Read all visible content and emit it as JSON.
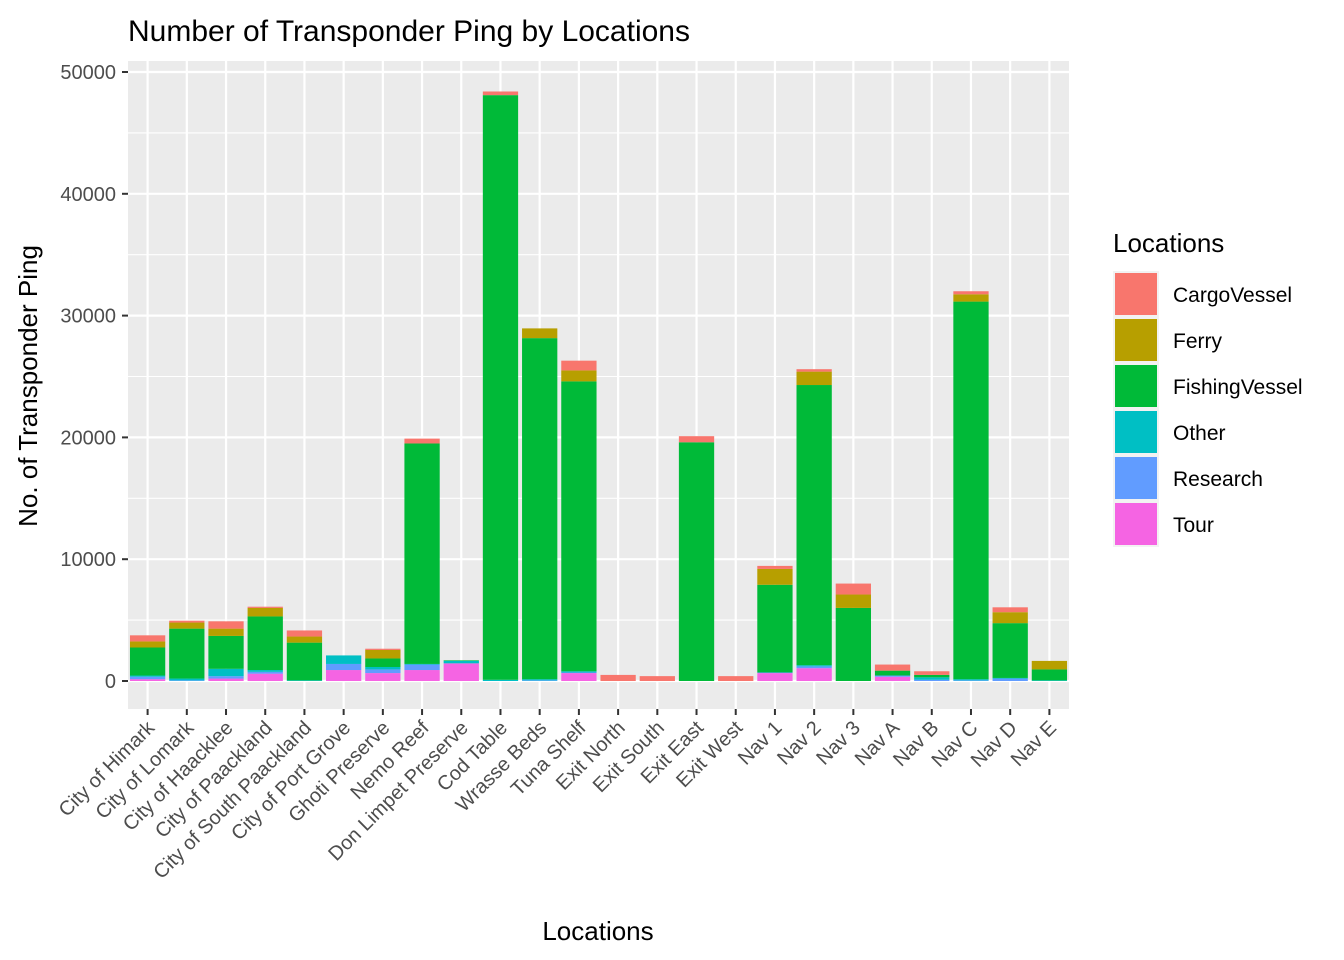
{
  "chart_data": {
    "type": "bar",
    "stacked": true,
    "title": "Number of Transponder Ping by Locations",
    "xlabel": "Locations",
    "ylabel": "No. of Transponder Ping",
    "ylim": [
      -2300,
      52000
    ],
    "yticks": [
      0,
      10000,
      20000,
      30000,
      40000,
      50000
    ],
    "grid": true,
    "legend": {
      "title": "Locations",
      "position": "right"
    },
    "categories": [
      "City of Himark",
      "City of Lomark",
      "City of Haacklee",
      "City of Paackland",
      "City of South Paackland",
      "City of Port Grove",
      "Ghoti Preserve",
      "Nemo Reef",
      "Don Limpet Preserve",
      "Cod Table",
      "Wrasse Beds",
      "Tuna Shelf",
      "Exit North",
      "Exit South",
      "Exit East",
      "Exit West",
      "Nav 1",
      "Nav 2",
      "Nav 3",
      "Nav A",
      "Nav B",
      "Nav C",
      "Nav D",
      "Nav E"
    ],
    "series": [
      {
        "name": "CargoVessel",
        "color": "#F8766D",
        "values": [
          500,
          150,
          600,
          100,
          500,
          0,
          100,
          400,
          0,
          300,
          0,
          800,
          500,
          400,
          500,
          400,
          250,
          200,
          900,
          500,
          300,
          250,
          400,
          0
        ]
      },
      {
        "name": "Ferry",
        "color": "#B79F00",
        "values": [
          500,
          500,
          600,
          700,
          500,
          0,
          700,
          0,
          0,
          0,
          800,
          900,
          0,
          0,
          0,
          0,
          1300,
          1100,
          1100,
          0,
          0,
          600,
          900,
          700
        ]
      },
      {
        "name": "FishingVessel",
        "color": "#00BA38",
        "values": [
          2300,
          4100,
          2700,
          4400,
          3100,
          0,
          700,
          18100,
          50,
          48000,
          28000,
          23800,
          0,
          0,
          19600,
          0,
          7200,
          23000,
          6000,
          400,
          200,
          31000,
          4500,
          900
        ]
      },
      {
        "name": "Other",
        "color": "#00BFC4",
        "values": [
          100,
          150,
          600,
          150,
          50,
          700,
          200,
          50,
          200,
          100,
          100,
          100,
          0,
          0,
          0,
          0,
          0,
          100,
          0,
          0,
          200,
          100,
          50,
          50
        ]
      },
      {
        "name": "Research",
        "color": "#619CFF",
        "values": [
          200,
          50,
          200,
          150,
          0,
          500,
          300,
          450,
          0,
          0,
          50,
          50,
          0,
          0,
          0,
          0,
          50,
          150,
          0,
          100,
          100,
          50,
          200,
          0
        ]
      },
      {
        "name": "Tour",
        "color": "#F564E3",
        "values": [
          150,
          0,
          200,
          600,
          0,
          900,
          650,
          900,
          1450,
          0,
          0,
          650,
          0,
          0,
          0,
          0,
          650,
          1050,
          0,
          350,
          0,
          0,
          0,
          0
        ]
      }
    ]
  }
}
